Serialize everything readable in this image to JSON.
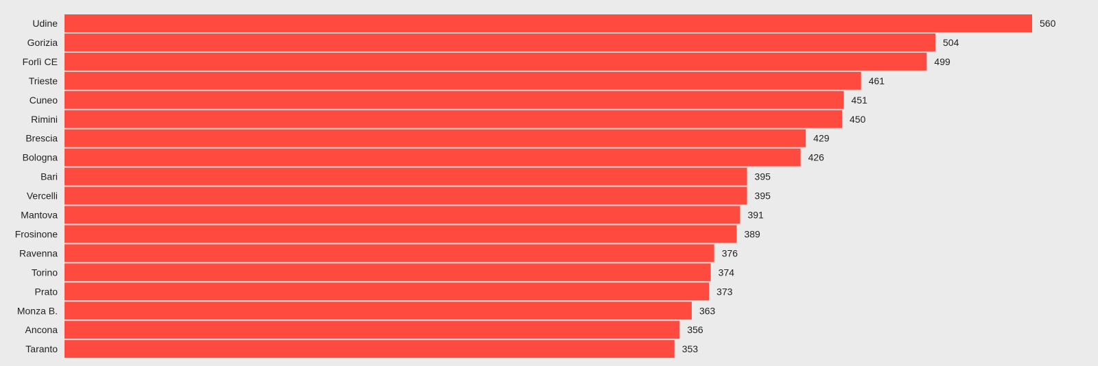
{
  "chart_data": {
    "type": "bar",
    "orientation": "horizontal",
    "categories": [
      "Udine",
      "Gorizia",
      "Forlì CE",
      "Trieste",
      "Cuneo",
      "Rimini",
      "Brescia",
      "Bologna",
      "Bari",
      "Vercelli",
      "Mantova",
      "Frosinone",
      "Ravenna",
      "Torino",
      "Prato",
      "Monza B.",
      "Ancona",
      "Taranto"
    ],
    "values": [
      560,
      504,
      499,
      461,
      451,
      450,
      429,
      426,
      395,
      395,
      391,
      389,
      376,
      374,
      373,
      363,
      356,
      353
    ],
    "title": "",
    "xlabel": "",
    "ylabel": "",
    "xlim": [
      0,
      560
    ],
    "grid": false,
    "data_labels": true
  },
  "colors": {
    "background": "#ebebeb",
    "bar": "#ff4a40",
    "text": "#222222"
  }
}
